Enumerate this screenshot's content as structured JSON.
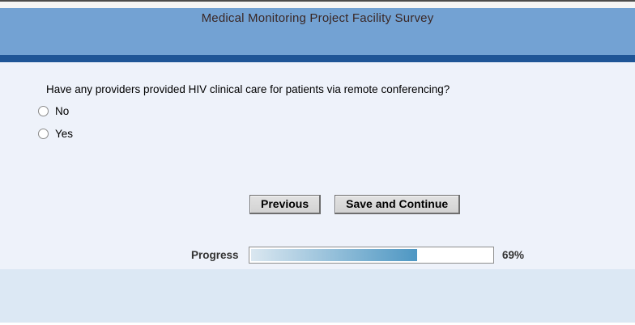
{
  "header": {
    "title": "Medical Monitoring Project Facility Survey",
    "bg_color": "#73a2d3",
    "stripe_color": "#1f5596",
    "title_color": "#3a2725"
  },
  "question": {
    "text": "Have any providers provided HIV clinical care for patients via remote conferencing?",
    "options": [
      {
        "label": "No",
        "selected": false
      },
      {
        "label": "Yes",
        "selected": false
      }
    ]
  },
  "buttons": {
    "previous": "Previous",
    "save_continue": "Save and Continue"
  },
  "progress": {
    "label": "Progress",
    "percent": 69,
    "percent_text": "69%",
    "fill_start_color": "#dae7f0",
    "fill_end_color": "#4e97c3"
  }
}
